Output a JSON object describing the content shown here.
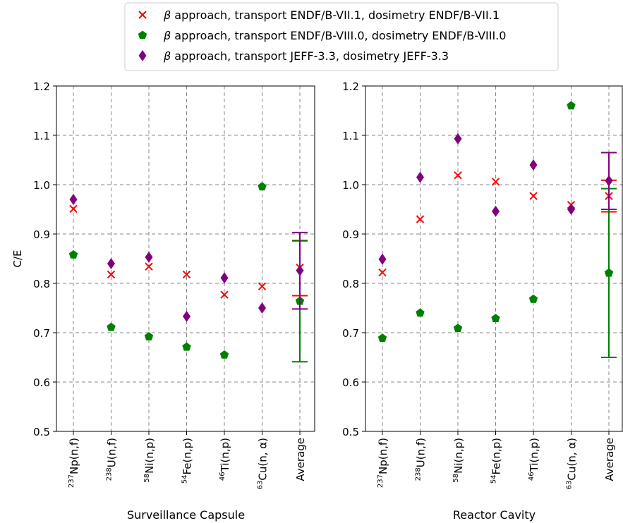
{
  "chart_data": {
    "type": "scatter",
    "legend": {
      "placement": "top-center",
      "entries": [
        {
          "prefix": "β",
          "label": " approach, transport ENDF/B-VII.1, dosimetry ENDF/B-VII.1",
          "color": "#ff0000",
          "marker": "x-marker"
        },
        {
          "prefix": "β",
          "label": " approach, transport ENDF/B-VIII.0, dosimetry ENDF/B-VIII.0",
          "color": "#008000",
          "marker": "pentagon-marker"
        },
        {
          "prefix": "β",
          "label": " approach, transport JEFF-3.3, dosimetry JEFF-3.3",
          "color": "#800080",
          "marker": "diamond-marker"
        }
      ]
    },
    "ylabel": "C/E",
    "ylim": [
      0.5,
      1.2
    ],
    "yticks": [
      "0.5",
      "0.6",
      "0.7",
      "0.8",
      "0.9",
      "1.0",
      "1.1",
      "1.2"
    ],
    "grid": true,
    "categories": [
      {
        "sup": "237",
        "base": "Np(n,f)"
      },
      {
        "sup": "238",
        "base": "U(n,f)"
      },
      {
        "sup": "58",
        "base": "Ni(n,p)"
      },
      {
        "sup": "54",
        "base": "Fe(n,p)"
      },
      {
        "sup": "46",
        "base": "Ti(n,p)"
      },
      {
        "sup": "63",
        "base": "Cu(n, α)"
      },
      {
        "sup": "",
        "base": "Average"
      }
    ],
    "panels": [
      {
        "xlabel": "Surveillance Capsule",
        "series": [
          {
            "values": [
              0.951,
              0.818,
              0.834,
              0.818,
              0.777,
              0.794,
              0.832
            ],
            "avg_err": [
              0.775,
              0.887
            ]
          },
          {
            "values": [
              0.858,
              0.711,
              0.692,
              0.671,
              0.655,
              0.996,
              0.764
            ],
            "avg_err": [
              0.641,
              0.886
            ]
          },
          {
            "values": [
              0.97,
              0.84,
              0.853,
              0.733,
              0.811,
              0.75,
              0.826
            ],
            "avg_err": [
              0.748,
              0.903
            ]
          }
        ]
      },
      {
        "xlabel": "Reactor Cavity",
        "series": [
          {
            "values": [
              0.822,
              0.93,
              1.019,
              1.006,
              0.977,
              0.959,
              0.977
            ],
            "avg_err": [
              0.945,
              1.009
            ]
          },
          {
            "values": [
              0.689,
              0.74,
              0.709,
              0.729,
              0.768,
              1.16,
              0.821
            ],
            "avg_err": [
              0.65,
              0.992
            ]
          },
          {
            "values": [
              0.849,
              1.015,
              1.093,
              0.946,
              1.04,
              0.95,
              1.008
            ],
            "avg_err": [
              0.95,
              1.065
            ]
          }
        ]
      }
    ]
  }
}
